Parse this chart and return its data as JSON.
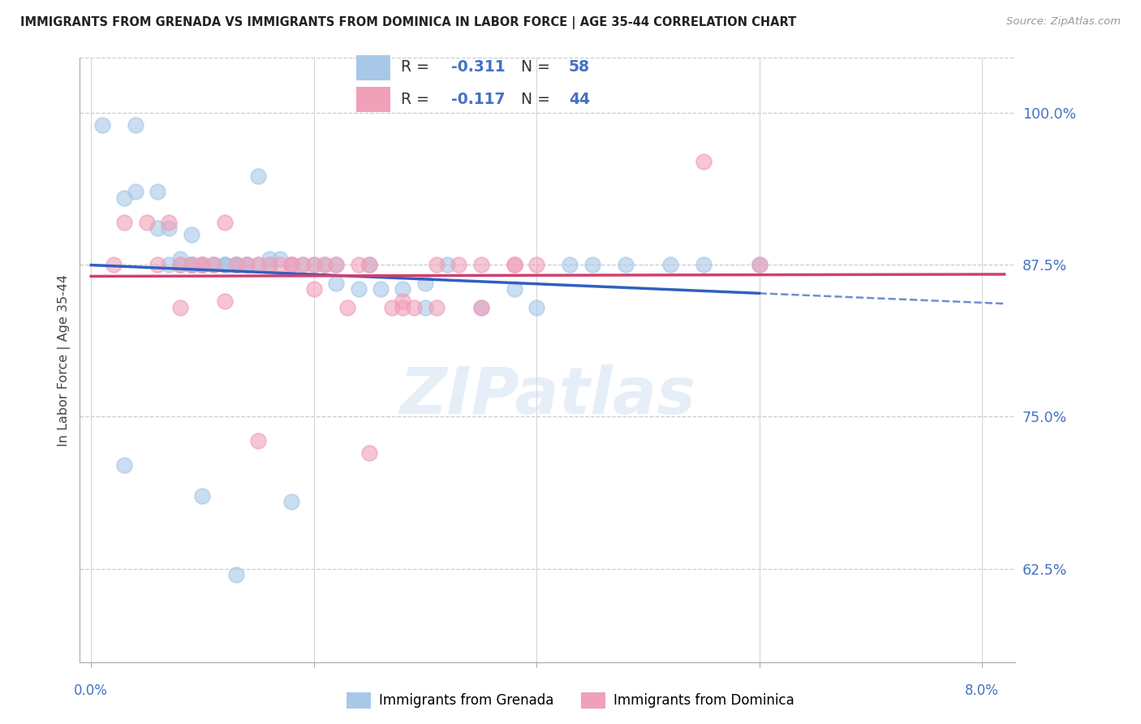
{
  "title": "IMMIGRANTS FROM GRENADA VS IMMIGRANTS FROM DOMINICA IN LABOR FORCE | AGE 35-44 CORRELATION CHART",
  "source": "Source: ZipAtlas.com",
  "ylabel": "In Labor Force | Age 35-44",
  "ytick_vals": [
    0.625,
    0.75,
    0.875,
    1.0
  ],
  "ytick_labels": [
    "62.5%",
    "75.0%",
    "87.5%",
    "100.0%"
  ],
  "xlim": [
    -0.001,
    0.083
  ],
  "ylim": [
    0.548,
    1.045
  ],
  "grenada_color": "#a8c8e8",
  "dominica_color": "#f0a0b8",
  "grenada_line_color": "#3060c0",
  "dominica_line_color": "#d04070",
  "grenada_scatter_x": [
    0.001,
    0.004,
    0.004,
    0.006,
    0.006,
    0.007,
    0.007,
    0.008,
    0.008,
    0.009,
    0.009,
    0.009,
    0.009,
    0.01,
    0.01,
    0.011,
    0.011,
    0.012,
    0.012,
    0.012,
    0.013,
    0.013,
    0.013,
    0.014,
    0.014,
    0.015,
    0.016,
    0.016,
    0.017,
    0.018,
    0.019,
    0.02,
    0.021,
    0.022,
    0.022,
    0.024,
    0.026,
    0.028,
    0.03,
    0.032,
    0.035,
    0.038,
    0.04,
    0.043,
    0.045,
    0.048,
    0.052,
    0.003,
    0.009,
    0.015,
    0.025,
    0.055,
    0.06,
    0.003,
    0.01,
    0.013,
    0.018,
    0.03
  ],
  "grenada_scatter_y": [
    0.99,
    0.99,
    0.935,
    0.935,
    0.905,
    0.905,
    0.875,
    0.88,
    0.875,
    0.875,
    0.875,
    0.875,
    0.9,
    0.875,
    0.875,
    0.875,
    0.875,
    0.875,
    0.875,
    0.875,
    0.875,
    0.875,
    0.875,
    0.875,
    0.875,
    0.875,
    0.875,
    0.88,
    0.88,
    0.875,
    0.875,
    0.875,
    0.875,
    0.875,
    0.86,
    0.855,
    0.855,
    0.855,
    0.86,
    0.875,
    0.84,
    0.855,
    0.84,
    0.875,
    0.875,
    0.875,
    0.875,
    0.93,
    0.875,
    0.948,
    0.875,
    0.875,
    0.875,
    0.71,
    0.685,
    0.62,
    0.68,
    0.84
  ],
  "dominica_scatter_x": [
    0.002,
    0.005,
    0.006,
    0.007,
    0.008,
    0.009,
    0.01,
    0.01,
    0.011,
    0.012,
    0.013,
    0.014,
    0.015,
    0.016,
    0.017,
    0.018,
    0.019,
    0.02,
    0.021,
    0.022,
    0.023,
    0.024,
    0.025,
    0.027,
    0.028,
    0.029,
    0.031,
    0.033,
    0.035,
    0.038,
    0.008,
    0.012,
    0.015,
    0.02,
    0.025,
    0.031,
    0.035,
    0.038,
    0.04,
    0.055,
    0.06,
    0.003,
    0.018,
    0.028
  ],
  "dominica_scatter_y": [
    0.875,
    0.91,
    0.875,
    0.91,
    0.875,
    0.875,
    0.875,
    0.875,
    0.875,
    0.91,
    0.875,
    0.875,
    0.875,
    0.875,
    0.875,
    0.875,
    0.875,
    0.875,
    0.875,
    0.875,
    0.84,
    0.875,
    0.875,
    0.84,
    0.84,
    0.84,
    0.875,
    0.875,
    0.875,
    0.875,
    0.84,
    0.845,
    0.73,
    0.855,
    0.72,
    0.84,
    0.84,
    0.875,
    0.875,
    0.96,
    0.875,
    0.91,
    0.875,
    0.845
  ],
  "grenada_line_x_start": 0.0,
  "grenada_line_x_solid_end": 0.06,
  "grenada_line_x_dash_end": 0.082,
  "dominica_line_x_start": 0.0,
  "dominica_line_x_end": 0.082,
  "xtick_positions": [
    0.0,
    0.02,
    0.04,
    0.06,
    0.08
  ]
}
